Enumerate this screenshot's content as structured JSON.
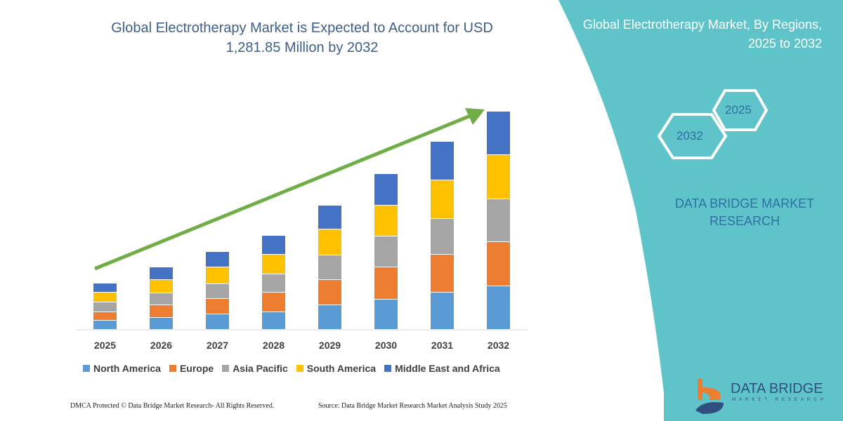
{
  "header": {
    "title": "Global Electrotherapy Market is Expected to Account for USD 1,281.85 Million by 2032"
  },
  "side_panel": {
    "title": "Global Electrotherapy Market, By Regions, 2025 to 2032",
    "hex_labels": [
      "2025",
      "2032"
    ],
    "brand": "DATA BRIDGE MARKET RESEARCH",
    "logo_text": "DATA BRIDGE",
    "logo_subtext": "MARKET RESEARCH",
    "background_color": "#5fc4c9"
  },
  "footer": {
    "left": "DMCA Protected © Data Bridge Market Research-  All Rights Reserved.",
    "right": "Source: Data Bridge Market Research  Market Analysis Study 2025"
  },
  "chart_data": {
    "type": "bar",
    "stacked": true,
    "title": "Global Electrotherapy Market is Expected to Account for USD 1,281.85 Million by 2032",
    "categories": [
      "2025",
      "2026",
      "2027",
      "2028",
      "2029",
      "2030",
      "2031",
      "2032"
    ],
    "series": [
      {
        "name": "North America",
        "color": "#5b9bd5",
        "values": [
          13,
          17,
          22,
          25,
          35,
          43,
          53,
          62
        ]
      },
      {
        "name": "Europe",
        "color": "#ed7d31",
        "values": [
          12,
          18,
          22,
          28,
          36,
          46,
          54,
          63
        ]
      },
      {
        "name": "Asia Pacific",
        "color": "#a5a5a5",
        "values": [
          14,
          17,
          21,
          26,
          35,
          44,
          51,
          61
        ]
      },
      {
        "name": "South America",
        "color": "#ffc000",
        "values": [
          14,
          19,
          24,
          28,
          37,
          44,
          55,
          63
        ]
      },
      {
        "name": "Middle East and Africa",
        "color": "#4472c4",
        "values": [
          13,
          18,
          22,
          27,
          34,
          45,
          55,
          62
        ]
      }
    ],
    "y_axis_shown": false,
    "grid": false,
    "legend_position": "bottom",
    "trend_arrow_color": "#70ad47"
  }
}
